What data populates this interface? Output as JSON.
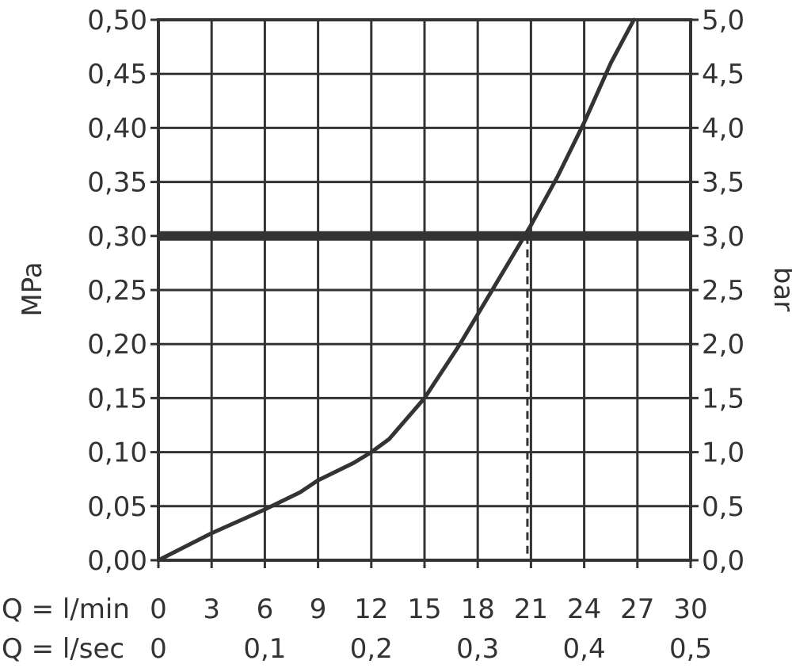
{
  "chart_data": {
    "type": "line",
    "xlabel_rows": [
      {
        "label": "Q = l/min",
        "ticks": [
          "0",
          "3",
          "6",
          "9",
          "12",
          "15",
          "18",
          "21",
          "24",
          "27",
          "30"
        ],
        "values": [
          0,
          3,
          6,
          9,
          12,
          15,
          18,
          21,
          24,
          27,
          30
        ]
      },
      {
        "label": "Q = l/sec",
        "ticks": [
          "0",
          "0,1",
          "0,2",
          "0,3",
          "0,4",
          "0,5"
        ],
        "values": [
          0,
          6,
          12,
          18,
          24,
          30
        ]
      }
    ],
    "ylabel_left": "MPa",
    "ylabel_right": "bar",
    "y_ticks_left": [
      "0,00",
      "0,05",
      "0,10",
      "0,15",
      "0,20",
      "0,25",
      "0,30",
      "0,35",
      "0,40",
      "0,45",
      "0,50"
    ],
    "y_ticks_right": [
      "0,0",
      "0,5",
      "1,0",
      "1,5",
      "2,0",
      "2,5",
      "3,0",
      "3,5",
      "4,0",
      "4,5",
      "5,0"
    ],
    "xlim": [
      0,
      30
    ],
    "ylim": [
      0,
      0.5
    ],
    "grid": true,
    "series": [
      {
        "x": [
          0,
          3,
          6,
          8,
          9,
          11,
          12,
          13,
          15,
          17,
          19,
          21,
          22.5,
          24,
          25.5,
          26.8
        ],
        "y": [
          0,
          0.025,
          0.047,
          0.063,
          0.074,
          0.09,
          0.1,
          0.112,
          0.15,
          0.2,
          0.255,
          0.31,
          0.355,
          0.405,
          0.46,
          0.5
        ]
      }
    ],
    "reference_line": {
      "y": 0.3
    },
    "marker_line": {
      "x": 20.8,
      "y": 0.3
    }
  }
}
